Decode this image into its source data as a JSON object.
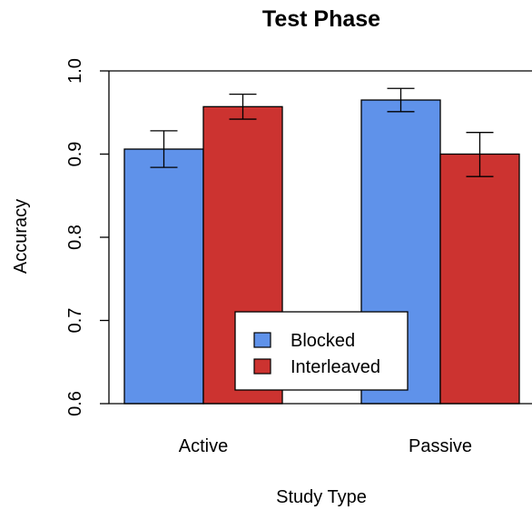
{
  "chart_data": {
    "type": "bar",
    "title": "Test Phase",
    "xlabel": "Study Type",
    "ylabel": "Accuracy",
    "categories": [
      "Active",
      "Passive"
    ],
    "ylim": [
      0.6,
      1.0
    ],
    "yticks": [
      "0.6",
      "0.7",
      "0.8",
      "0.9",
      "1.0"
    ],
    "ytick_values": [
      0.6,
      0.7,
      0.8,
      0.9,
      1.0
    ],
    "series": [
      {
        "name": "Blocked",
        "color": "#5f92ea",
        "values": [
          0.906,
          0.965
        ],
        "err_low": [
          0.884,
          0.951
        ],
        "err_high": [
          0.928,
          0.979
        ]
      },
      {
        "name": "Interleaved",
        "color": "#cc3330",
        "values": [
          0.957,
          0.9
        ],
        "err_low": [
          0.942,
          0.873
        ],
        "err_high": [
          0.972,
          0.926
        ]
      }
    ],
    "legend_position": "bottom-center",
    "grid": false
  }
}
